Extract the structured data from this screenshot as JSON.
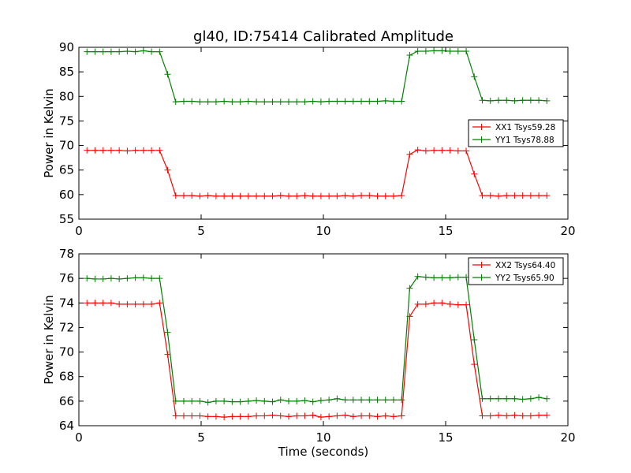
{
  "figure": {
    "title": "gl40, ID:75414 Calibrated Amplitude"
  },
  "chart_data": [
    {
      "type": "line",
      "ylabel": "Power in Kelvin",
      "xlabel": "",
      "xlim": [
        0,
        20
      ],
      "ylim": [
        55,
        90
      ],
      "xticks": [
        "0",
        "5",
        "10",
        "15",
        "20"
      ],
      "yticks": [
        "55",
        "60",
        "65",
        "70",
        "75",
        "80",
        "85",
        "90"
      ],
      "legend_position": "right",
      "x": [
        0.33,
        0.66,
        0.99,
        1.32,
        1.65,
        1.98,
        2.31,
        2.64,
        2.97,
        3.3,
        3.63,
        3.96,
        4.29,
        4.62,
        4.95,
        5.28,
        5.61,
        5.94,
        6.27,
        6.6,
        6.93,
        7.26,
        7.59,
        7.92,
        8.25,
        8.58,
        8.91,
        9.24,
        9.57,
        9.9,
        10.23,
        10.56,
        10.89,
        11.22,
        11.55,
        11.88,
        12.21,
        12.54,
        12.87,
        13.2,
        13.53,
        13.86,
        14.19,
        14.52,
        14.85,
        15.18,
        15.51,
        15.84,
        16.17,
        16.5,
        16.83,
        17.16,
        17.49,
        17.82,
        18.15,
        18.48,
        18.81,
        19.14
      ],
      "series": [
        {
          "name": "XX1 Tsys59.28",
          "color": "#ff0000",
          "values": [
            69.0,
            69.0,
            69.0,
            69.0,
            69.0,
            68.9,
            69.0,
            69.0,
            69.0,
            69.0,
            65.0,
            59.8,
            59.8,
            59.8,
            59.7,
            59.8,
            59.7,
            59.7,
            59.7,
            59.7,
            59.7,
            59.7,
            59.7,
            59.7,
            59.8,
            59.7,
            59.7,
            59.8,
            59.7,
            59.7,
            59.7,
            59.7,
            59.8,
            59.7,
            59.8,
            59.8,
            59.7,
            59.7,
            59.7,
            59.8,
            68.2,
            69.1,
            68.9,
            69.0,
            69.0,
            69.0,
            68.9,
            68.9,
            64.2,
            59.8,
            59.8,
            59.7,
            59.8,
            59.8,
            59.8,
            59.8,
            59.8,
            59.8
          ]
        },
        {
          "name": "YY1 Tsys78.88",
          "color": "#008000",
          "values": [
            89.1,
            89.1,
            89.1,
            89.1,
            89.1,
            89.2,
            89.1,
            89.3,
            89.1,
            89.1,
            84.5,
            78.9,
            79.0,
            79.0,
            78.9,
            78.9,
            78.9,
            79.0,
            78.9,
            78.9,
            79.0,
            78.9,
            78.9,
            78.9,
            78.9,
            78.9,
            78.9,
            78.9,
            79.0,
            78.9,
            79.0,
            79.0,
            79.0,
            79.0,
            79.0,
            79.0,
            79.0,
            79.1,
            79.0,
            79.0,
            88.4,
            89.2,
            89.2,
            89.3,
            89.3,
            89.2,
            89.2,
            89.2,
            84.0,
            79.2,
            79.1,
            79.2,
            79.2,
            79.1,
            79.2,
            79.2,
            79.2,
            79.1
          ]
        }
      ]
    },
    {
      "type": "line",
      "ylabel": "Power in Kelvin",
      "xlabel": "Time (seconds)",
      "xlim": [
        0,
        20
      ],
      "ylim": [
        64,
        78
      ],
      "xticks": [
        "0",
        "5",
        "10",
        "15",
        "20"
      ],
      "yticks": [
        "64",
        "66",
        "68",
        "70",
        "72",
        "74",
        "76",
        "78"
      ],
      "legend_position": "upper right",
      "x": [
        0.33,
        0.66,
        0.99,
        1.32,
        1.65,
        1.98,
        2.31,
        2.64,
        2.97,
        3.3,
        3.63,
        3.96,
        4.29,
        4.62,
        4.95,
        5.28,
        5.61,
        5.94,
        6.27,
        6.6,
        6.93,
        7.26,
        7.59,
        7.92,
        8.25,
        8.58,
        8.91,
        9.24,
        9.57,
        9.9,
        10.23,
        10.56,
        10.89,
        11.22,
        11.55,
        11.88,
        12.21,
        12.54,
        12.87,
        13.2,
        13.53,
        13.86,
        14.19,
        14.52,
        14.85,
        15.18,
        15.51,
        15.84,
        16.17,
        16.5,
        16.83,
        17.16,
        17.49,
        17.82,
        18.15,
        18.48,
        18.81,
        19.14
      ],
      "series": [
        {
          "name": "XX2 Tsys64.40",
          "color": "#ff0000",
          "values": [
            74.0,
            74.0,
            74.0,
            74.0,
            73.9,
            73.9,
            73.9,
            73.9,
            73.9,
            74.0,
            69.8,
            64.8,
            64.8,
            64.8,
            64.8,
            64.75,
            64.75,
            64.7,
            64.75,
            64.75,
            64.75,
            64.8,
            64.8,
            64.85,
            64.8,
            64.75,
            64.8,
            64.8,
            64.85,
            64.7,
            64.75,
            64.8,
            64.85,
            64.75,
            64.8,
            64.8,
            64.75,
            64.8,
            64.75,
            64.8,
            72.9,
            73.9,
            73.9,
            74.0,
            74.0,
            73.9,
            73.85,
            73.85,
            69.0,
            64.8,
            64.8,
            64.85,
            64.8,
            64.85,
            64.8,
            64.8,
            64.85,
            64.85
          ]
        },
        {
          "name": "YY2 Tsys65.90",
          "color": "#008000",
          "values": [
            76.0,
            75.95,
            75.95,
            76.0,
            75.95,
            76.0,
            76.05,
            76.05,
            76.0,
            76.0,
            71.6,
            66.0,
            66.0,
            66.0,
            66.0,
            65.9,
            66.0,
            66.0,
            65.95,
            65.95,
            66.0,
            66.05,
            66.0,
            65.95,
            66.1,
            66.0,
            66.0,
            66.05,
            65.95,
            66.05,
            66.1,
            66.2,
            66.1,
            66.1,
            66.1,
            66.1,
            66.1,
            66.1,
            66.1,
            66.1,
            75.2,
            76.15,
            76.1,
            76.05,
            76.05,
            76.05,
            76.1,
            76.1,
            71.0,
            66.2,
            66.2,
            66.2,
            66.2,
            66.2,
            66.15,
            66.2,
            66.3,
            66.2
          ]
        }
      ]
    }
  ]
}
